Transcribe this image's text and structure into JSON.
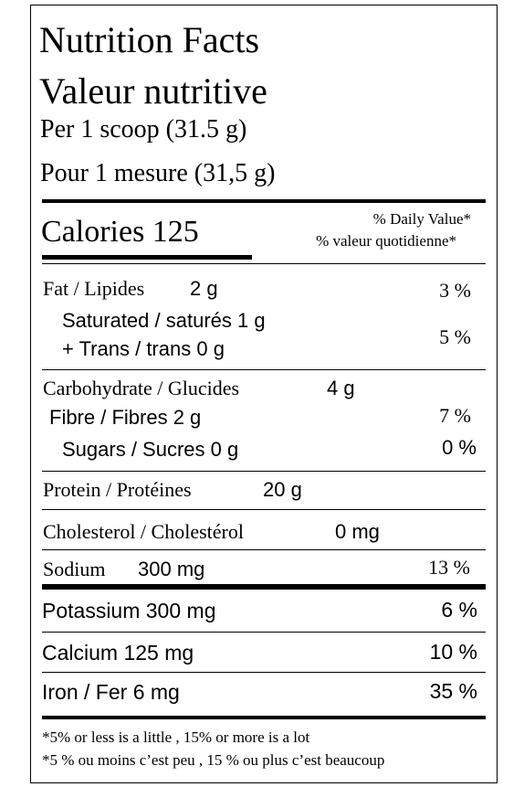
{
  "header": {
    "title_en": "Nutrition Facts",
    "title_fr": "Valeur nutritive",
    "serving_en": "Per 1 scoop (31.5 g)",
    "serving_fr": "Pour 1 mesure (31,5 g)"
  },
  "calories": {
    "label": "Calories 125",
    "dv_en": "% Daily Value*",
    "dv_fr": "% valeur quotidienne*"
  },
  "fat": {
    "label": "Fat / Lipides",
    "amount": "2 g",
    "dv": "3 %"
  },
  "saturated": {
    "label": "Saturated / saturés 1 g",
    "trans": "+ Trans / trans 0 g",
    "dv": "5 %"
  },
  "carbohydrate": {
    "label": "Carbohydrate / Glucides",
    "amount": "4 g"
  },
  "fibre": {
    "label": "Fibre / Fibres 2 g",
    "dv": "7 %"
  },
  "sugars": {
    "label": "Sugars / Sucres 0 g",
    "dv": "0 %"
  },
  "protein": {
    "label": "Protein / Protéines",
    "amount": "20 g"
  },
  "cholesterol": {
    "label": "Cholesterol / Cholestérol",
    "amount": "0 mg"
  },
  "sodium": {
    "label": "Sodium",
    "amount": "300 mg",
    "dv": "13 %"
  },
  "potassium": {
    "label": "Potassium 300 mg",
    "dv": "6 %"
  },
  "calcium": {
    "label": "Calcium 125 mg",
    "dv": "10 %"
  },
  "iron": {
    "label": "Iron / Fer 6 mg",
    "dv": "35 %"
  },
  "footnote": {
    "en": "*5% or less is a little , 15% or more is a lot",
    "fr": "*5 % ou moins c’est peu , 15 % ou plus c’est beaucoup"
  }
}
